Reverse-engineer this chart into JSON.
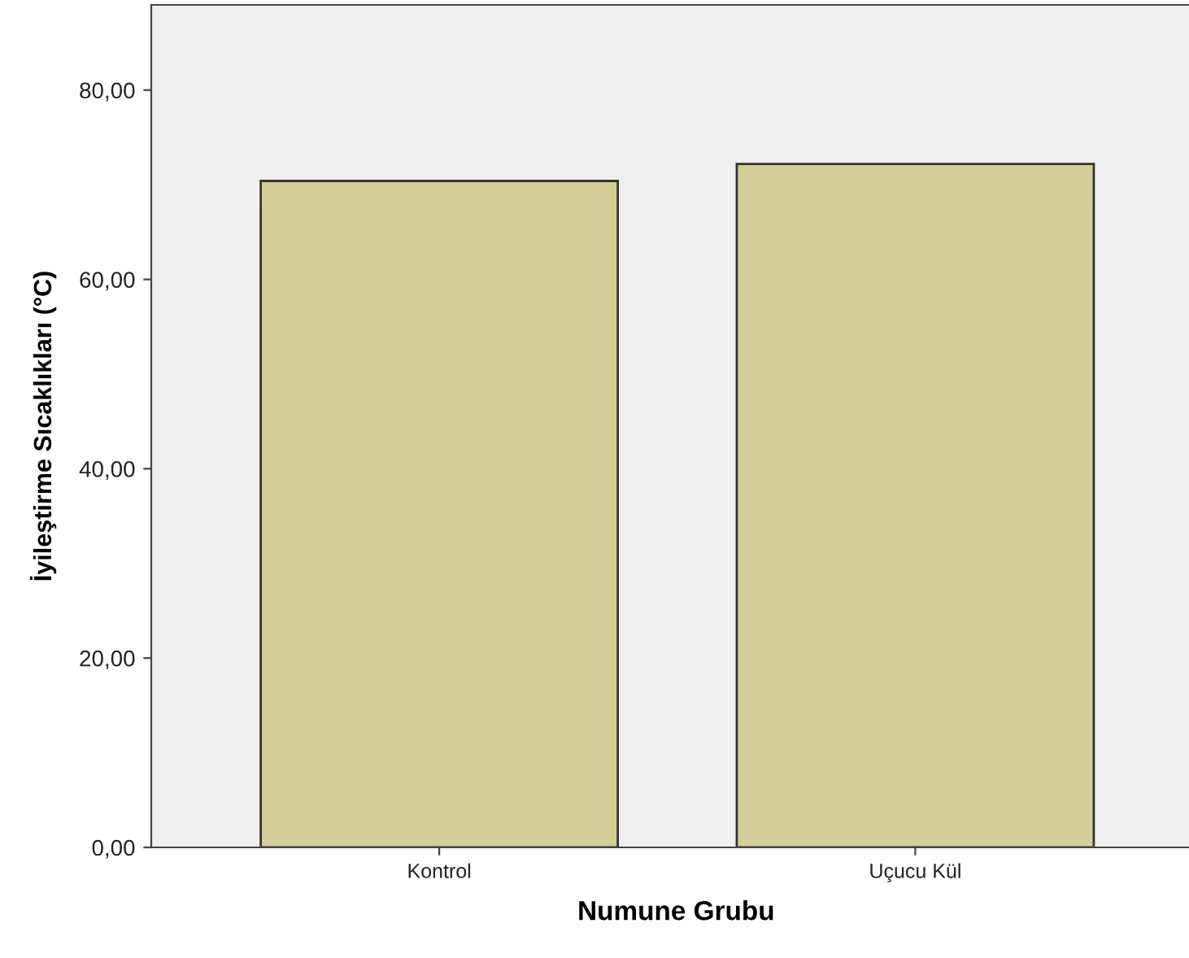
{
  "chart_data": {
    "type": "bar",
    "xlabel": "Numune Grubu",
    "ylabel": "İyileştirme Sıcaklıkları (°C)",
    "categories": [
      "Kontrol",
      "Uçucu Kül"
    ],
    "values": [
      70.4,
      72.2
    ],
    "color": "#d3ce97",
    "ylim": [
      0,
      89
    ],
    "yticks": [
      {
        "value": 0,
        "label": "0,00"
      },
      {
        "value": 20,
        "label": "20,00"
      },
      {
        "value": 40,
        "label": "40,00"
      },
      {
        "value": 60,
        "label": "60,00"
      },
      {
        "value": 80,
        "label": "80,00"
      }
    ],
    "grid": false
  }
}
